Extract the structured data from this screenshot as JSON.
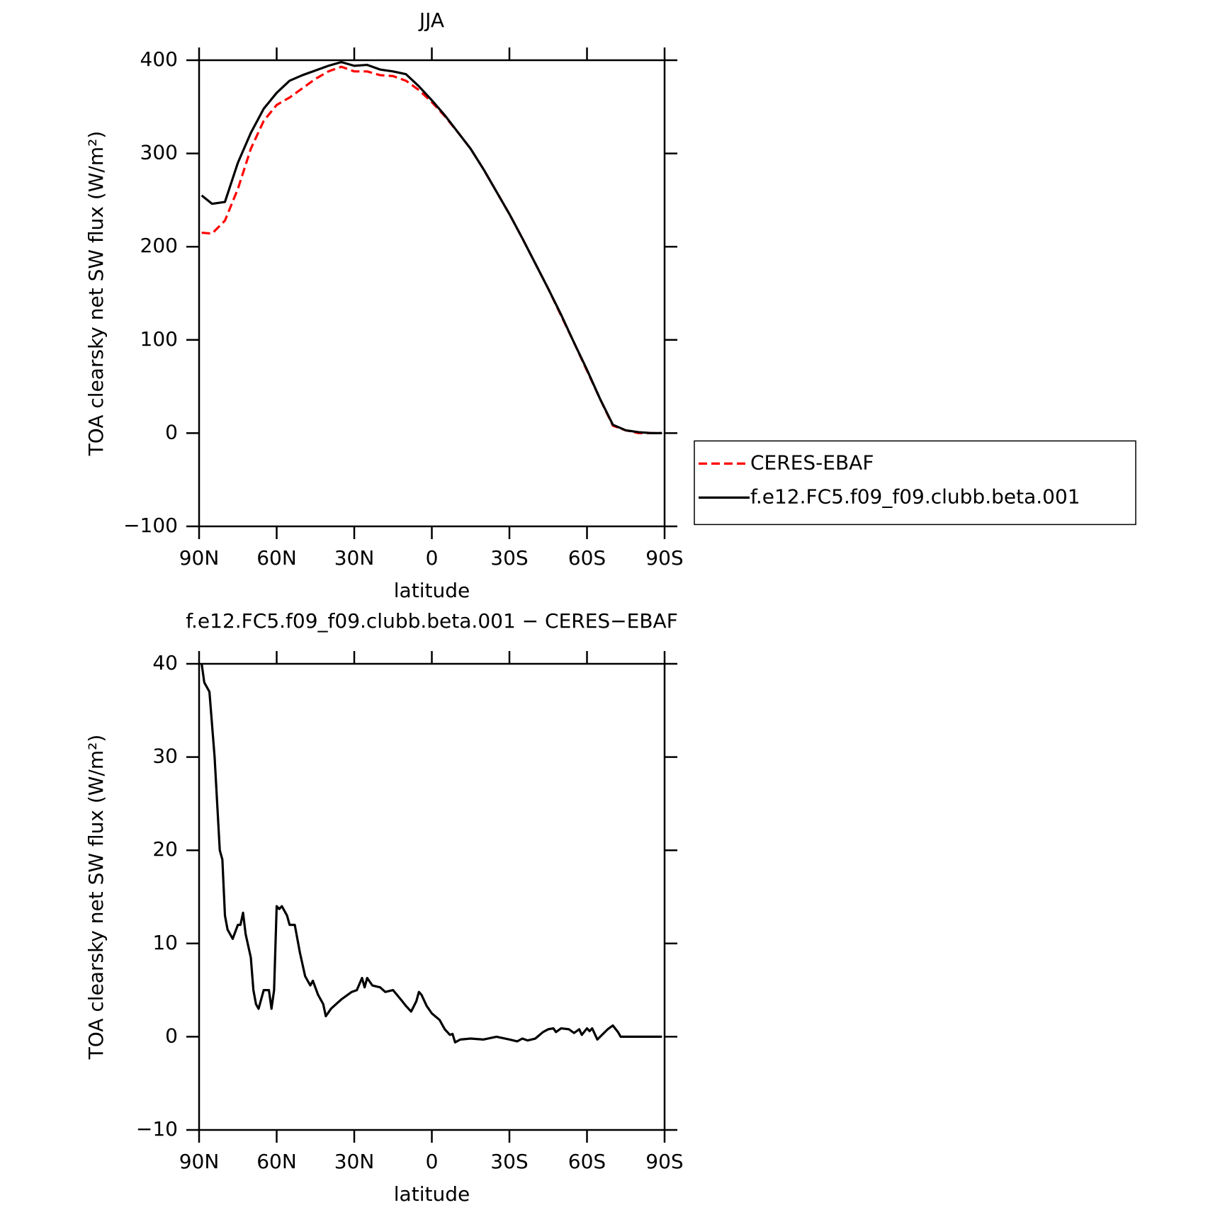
{
  "chart_data": [
    {
      "type": "line",
      "title": "JJA",
      "xlabel": "latitude",
      "ylabel": "TOA clearsky net SW flux (W/m²)",
      "x": [
        89,
        85,
        80,
        75,
        70,
        65,
        60,
        55,
        50,
        45,
        40,
        35,
        30,
        25,
        20,
        15,
        10,
        5,
        0,
        -5,
        -10,
        -15,
        -20,
        -25,
        -30,
        -35,
        -40,
        -45,
        -50,
        -55,
        -60,
        -65,
        -70,
        -75,
        -80,
        -85,
        -89
      ],
      "series": [
        {
          "name": "CERES-EBAF",
          "color": "#ff0000",
          "linestyle": "dashed",
          "values": [
            215,
            214,
            228,
            262,
            305,
            335,
            352,
            360,
            370,
            380,
            388,
            393,
            388,
            388,
            384,
            383,
            378,
            368,
            355,
            340,
            323,
            305,
            283,
            259,
            235,
            209,
            182,
            155,
            126,
            97,
            67,
            37,
            8,
            3,
            0,
            0,
            0
          ]
        },
        {
          "name": "f.e12.FC5.f09_f09.clubb.beta.001",
          "color": "#000000",
          "linestyle": "solid",
          "values": [
            255,
            246,
            248,
            290,
            322,
            348,
            365,
            378,
            384,
            389,
            394,
            398,
            394,
            395,
            390,
            388,
            385,
            372,
            357,
            341,
            323,
            305,
            283,
            259,
            235,
            209,
            182,
            155,
            127,
            97,
            68,
            37,
            9,
            3,
            1,
            0,
            0
          ]
        }
      ],
      "xlim": [
        90,
        -90
      ],
      "xticks": [
        {
          "value": 90,
          "label": "90N"
        },
        {
          "value": 60,
          "label": "60N"
        },
        {
          "value": 30,
          "label": "30N"
        },
        0,
        {
          "value": -30,
          "label": "30S"
        },
        {
          "value": -60,
          "label": "60S"
        },
        {
          "value": -90,
          "label": "90S"
        }
      ],
      "ylim": [
        -100,
        400
      ],
      "yticks": [
        {
          "value": -100,
          "label": "−100"
        },
        0,
        100,
        200,
        300,
        400
      ],
      "legend": "right"
    },
    {
      "type": "line",
      "title": "f.e12.FC5.f09_f09.clubb.beta.001 − CERES−EBAF",
      "xlabel": "latitude",
      "ylabel": "TOA clearsky net SW flux (W/m²)",
      "x": [
        89,
        88,
        86,
        84,
        82,
        81,
        80,
        79,
        77,
        75,
        74,
        73,
        72,
        70,
        69,
        68,
        67,
        65,
        63,
        62,
        61,
        60,
        59,
        58,
        56,
        55,
        53,
        51,
        49,
        47,
        46,
        44,
        42,
        41,
        39,
        37,
        35,
        31,
        29,
        27,
        26,
        25,
        23,
        20,
        18,
        15,
        12,
        10,
        8,
        6,
        5,
        4,
        2,
        0,
        -3,
        -5,
        -7,
        -8,
        -9,
        -11,
        -15,
        -20,
        -25,
        -30,
        -33,
        -35,
        -37,
        -40,
        -43,
        -45,
        -47,
        -48,
        -50,
        -53,
        -55,
        -57,
        -58,
        -60,
        -61,
        -62,
        -64,
        -68,
        -70,
        -72,
        -73,
        -80,
        -89
      ],
      "series": [
        {
          "color": "#000000",
          "linestyle": "solid",
          "values": [
            40,
            38,
            37,
            30,
            20,
            19,
            13,
            11.5,
            10.5,
            12,
            12,
            13.3,
            11,
            8.5,
            5,
            3.5,
            3,
            5,
            5,
            3,
            5,
            14,
            13.7,
            14,
            13,
            12,
            12,
            9,
            6.5,
            5.5,
            6,
            4.5,
            3.5,
            2.2,
            3,
            3.5,
            4,
            4.8,
            5,
            6.3,
            5.3,
            6.3,
            5.5,
            5.3,
            4.8,
            5,
            4,
            3.3,
            2.7,
            3.8,
            4.8,
            4.5,
            3.3,
            2.5,
            1.8,
            0.8,
            0.2,
            0.3,
            -0.6,
            -0.3,
            -0.2,
            -0.3,
            0,
            -0.3,
            -0.5,
            -0.2,
            -0.4,
            -0.2,
            0.5,
            0.8,
            0.9,
            0.5,
            0.9,
            0.8,
            0.4,
            0.8,
            0.2,
            0.9,
            0.6,
            0.9,
            -0.3,
            0.8,
            1.2,
            0.5,
            0,
            0,
            0
          ]
        }
      ],
      "xlim": [
        90,
        -90
      ],
      "xticks": [
        {
          "value": 90,
          "label": "90N"
        },
        {
          "value": 60,
          "label": "60N"
        },
        {
          "value": 30,
          "label": "30N"
        },
        0,
        {
          "value": -30,
          "label": "30S"
        },
        {
          "value": -60,
          "label": "60S"
        },
        {
          "value": -90,
          "label": "90S"
        }
      ],
      "ylim": [
        -10,
        40
      ],
      "yticks": [
        {
          "value": -10,
          "label": "−10"
        },
        0,
        10,
        20,
        30,
        40
      ]
    }
  ]
}
